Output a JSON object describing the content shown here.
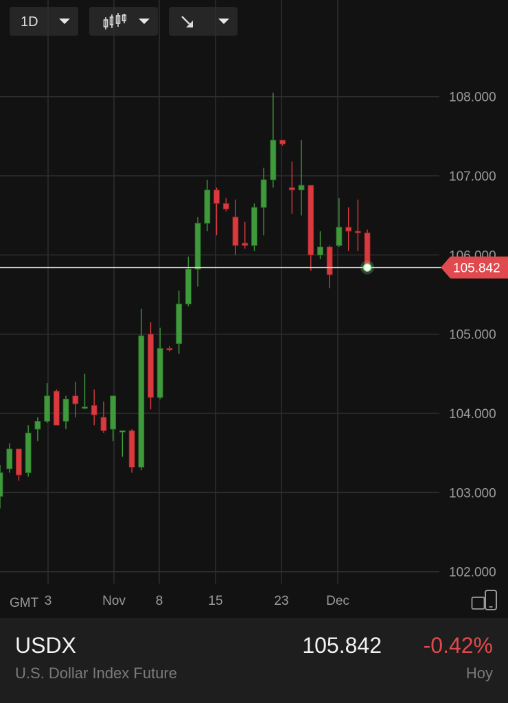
{
  "toolbar": {
    "interval_label": "1D",
    "chart_type_icon": "candlestick-icon",
    "drawing_icon": "arrow-down-right-icon"
  },
  "timezone_label": "GMT",
  "instrument": {
    "symbol": "USDX",
    "name": "U.S. Dollar Index Future",
    "price": "105.842",
    "change": "-0.42%",
    "period": "Hoy"
  },
  "colors": {
    "up": "#3e9a3a",
    "down": "#d93a3e",
    "grid": "#2e2e2e",
    "price_line": "#dcdcdc",
    "price_tag": "#e0494d"
  },
  "chart_data": {
    "type": "candlestick",
    "ylim": [
      101.85,
      108.7
    ],
    "y_ticks": [
      "102.000",
      "103.000",
      "104.000",
      "105.000",
      "106.000",
      "107.000",
      "108.000"
    ],
    "x_ticks": [
      "3",
      "Nov",
      "8",
      "15",
      "23",
      "Dec"
    ],
    "current_price": 105.842,
    "current_price_label": "105.842",
    "candles": [
      {
        "o": 102.95,
        "h": 103.35,
        "l": 102.8,
        "c": 103.25
      },
      {
        "o": 103.3,
        "h": 103.62,
        "l": 103.25,
        "c": 103.55
      },
      {
        "o": 103.55,
        "h": 103.55,
        "l": 103.15,
        "c": 103.22
      },
      {
        "o": 103.25,
        "h": 103.85,
        "l": 103.2,
        "c": 103.75
      },
      {
        "o": 103.8,
        "h": 103.95,
        "l": 103.65,
        "c": 103.9
      },
      {
        "o": 103.9,
        "h": 104.38,
        "l": 103.88,
        "c": 104.22
      },
      {
        "o": 104.28,
        "h": 104.3,
        "l": 103.85,
        "c": 103.85
      },
      {
        "o": 103.9,
        "h": 104.22,
        "l": 103.8,
        "c": 104.18
      },
      {
        "o": 104.22,
        "h": 104.4,
        "l": 103.95,
        "c": 104.12
      },
      {
        "o": 104.08,
        "h": 104.5,
        "l": 104.05,
        "c": 104.08
      },
      {
        "o": 104.1,
        "h": 104.3,
        "l": 103.85,
        "c": 103.98
      },
      {
        "o": 103.95,
        "h": 104.15,
        "l": 103.75,
        "c": 103.78
      },
      {
        "o": 103.8,
        "h": 104.22,
        "l": 103.65,
        "c": 104.22
      },
      {
        "o": 103.78,
        "h": 103.78,
        "l": 103.45,
        "c": 103.78
      },
      {
        "o": 103.78,
        "h": 103.8,
        "l": 103.25,
        "c": 103.32
      },
      {
        "o": 103.32,
        "h": 105.32,
        "l": 103.28,
        "c": 104.98
      },
      {
        "o": 105.0,
        "h": 105.15,
        "l": 104.05,
        "c": 104.2
      },
      {
        "o": 104.2,
        "h": 105.08,
        "l": 104.18,
        "c": 104.82
      },
      {
        "o": 104.82,
        "h": 104.85,
        "l": 104.78,
        "c": 104.8
      },
      {
        "o": 104.88,
        "h": 105.55,
        "l": 104.75,
        "c": 105.38
      },
      {
        "o": 105.38,
        "h": 105.98,
        "l": 105.35,
        "c": 105.82
      },
      {
        "o": 105.82,
        "h": 106.48,
        "l": 105.6,
        "c": 106.4
      },
      {
        "o": 106.4,
        "h": 106.95,
        "l": 106.3,
        "c": 106.82
      },
      {
        "o": 106.82,
        "h": 106.85,
        "l": 106.25,
        "c": 106.65
      },
      {
        "o": 106.65,
        "h": 106.72,
        "l": 106.55,
        "c": 106.58
      },
      {
        "o": 106.48,
        "h": 106.7,
        "l": 106.0,
        "c": 106.12
      },
      {
        "o": 106.15,
        "h": 106.42,
        "l": 106.08,
        "c": 106.12
      },
      {
        "o": 106.12,
        "h": 106.65,
        "l": 106.05,
        "c": 106.6
      },
      {
        "o": 106.6,
        "h": 107.1,
        "l": 106.25,
        "c": 106.95
      },
      {
        "o": 106.95,
        "h": 108.05,
        "l": 106.85,
        "c": 107.45
      },
      {
        "o": 107.45,
        "h": 107.45,
        "l": 107.38,
        "c": 107.4
      },
      {
        "o": 106.85,
        "h": 107.18,
        "l": 106.52,
        "c": 106.82
      },
      {
        "o": 106.82,
        "h": 107.45,
        "l": 106.5,
        "c": 106.88
      },
      {
        "o": 106.88,
        "h": 106.88,
        "l": 105.8,
        "c": 106.0
      },
      {
        "o": 106.0,
        "h": 106.3,
        "l": 105.95,
        "c": 106.1
      },
      {
        "o": 106.1,
        "h": 106.12,
        "l": 105.58,
        "c": 105.75
      },
      {
        "o": 106.12,
        "h": 106.72,
        "l": 106.1,
        "c": 106.35
      },
      {
        "o": 106.35,
        "h": 106.6,
        "l": 106.05,
        "c": 106.3
      },
      {
        "o": 106.3,
        "h": 106.7,
        "l": 106.05,
        "c": 106.28
      },
      {
        "o": 106.28,
        "h": 106.32,
        "l": 105.84,
        "c": 105.84
      }
    ]
  }
}
